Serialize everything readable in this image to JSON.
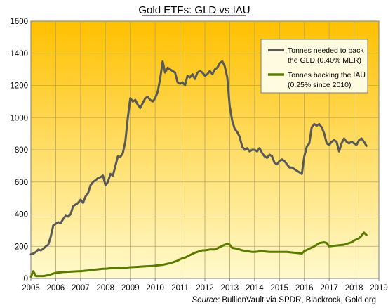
{
  "chart_data": {
    "type": "line",
    "title": "Gold ETFs: GLD vs IAU",
    "xlabel": "",
    "ylabel": "",
    "xlim": [
      2005,
      2019
    ],
    "ylim": [
      0,
      1600
    ],
    "y_ticks": [
      "0",
      "200",
      "400",
      "600",
      "800",
      "1000",
      "1200",
      "1400",
      "1600"
    ],
    "x_ticks": [
      "2005",
      "2006",
      "2007",
      "2008",
      "2009",
      "2010",
      "2011",
      "2012",
      "2013",
      "2014",
      "2015",
      "2016",
      "2017",
      "2018",
      "2019"
    ],
    "grid": true,
    "legend_position": "top-right",
    "series": [
      {
        "name_lines": [
          "Tonnes needed to back",
          "the GLD (0.40% MER)"
        ],
        "color": "#595959",
        "points": [
          [
            2005.0,
            150
          ],
          [
            2005.1,
            155
          ],
          [
            2005.2,
            165
          ],
          [
            2005.3,
            180
          ],
          [
            2005.4,
            175
          ],
          [
            2005.5,
            185
          ],
          [
            2005.6,
            200
          ],
          [
            2005.7,
            210
          ],
          [
            2005.8,
            260
          ],
          [
            2005.9,
            330
          ],
          [
            2006.0,
            340
          ],
          [
            2006.1,
            350
          ],
          [
            2006.2,
            345
          ],
          [
            2006.3,
            370
          ],
          [
            2006.4,
            390
          ],
          [
            2006.5,
            385
          ],
          [
            2006.6,
            400
          ],
          [
            2006.7,
            450
          ],
          [
            2006.8,
            460
          ],
          [
            2006.9,
            470
          ],
          [
            2007.0,
            490
          ],
          [
            2007.1,
            470
          ],
          [
            2007.2,
            510
          ],
          [
            2007.3,
            530
          ],
          [
            2007.4,
            580
          ],
          [
            2007.5,
            600
          ],
          [
            2007.6,
            610
          ],
          [
            2007.7,
            625
          ],
          [
            2007.8,
            630
          ],
          [
            2007.9,
            640
          ],
          [
            2008.0,
            580
          ],
          [
            2008.1,
            600
          ],
          [
            2008.2,
            650
          ],
          [
            2008.3,
            640
          ],
          [
            2008.4,
            700
          ],
          [
            2008.5,
            760
          ],
          [
            2008.6,
            755
          ],
          [
            2008.7,
            780
          ],
          [
            2008.8,
            850
          ],
          [
            2008.9,
            1000
          ],
          [
            2009.0,
            1120
          ],
          [
            2009.1,
            1100
          ],
          [
            2009.2,
            1110
          ],
          [
            2009.3,
            1080
          ],
          [
            2009.4,
            1060
          ],
          [
            2009.5,
            1090
          ],
          [
            2009.6,
            1120
          ],
          [
            2009.7,
            1130
          ],
          [
            2009.8,
            1110
          ],
          [
            2009.9,
            1100
          ],
          [
            2010.0,
            1120
          ],
          [
            2010.1,
            1160
          ],
          [
            2010.2,
            1240
          ],
          [
            2010.3,
            1350
          ],
          [
            2010.4,
            1280
          ],
          [
            2010.5,
            1310
          ],
          [
            2010.6,
            1300
          ],
          [
            2010.7,
            1290
          ],
          [
            2010.8,
            1280
          ],
          [
            2010.9,
            1220
          ],
          [
            2011.0,
            1210
          ],
          [
            2011.1,
            1220
          ],
          [
            2011.2,
            1200
          ],
          [
            2011.3,
            1260
          ],
          [
            2011.4,
            1250
          ],
          [
            2011.5,
            1270
          ],
          [
            2011.6,
            1240
          ],
          [
            2011.7,
            1280
          ],
          [
            2011.8,
            1290
          ],
          [
            2011.9,
            1280
          ],
          [
            2012.0,
            1260
          ],
          [
            2012.1,
            1270
          ],
          [
            2012.2,
            1290
          ],
          [
            2012.3,
            1270
          ],
          [
            2012.4,
            1300
          ],
          [
            2012.5,
            1310
          ],
          [
            2012.6,
            1340
          ],
          [
            2012.7,
            1350
          ],
          [
            2012.8,
            1320
          ],
          [
            2012.9,
            1250
          ],
          [
            2013.0,
            1070
          ],
          [
            2013.1,
            980
          ],
          [
            2013.2,
            930
          ],
          [
            2013.3,
            910
          ],
          [
            2013.4,
            880
          ],
          [
            2013.5,
            820
          ],
          [
            2013.6,
            800
          ],
          [
            2013.7,
            810
          ],
          [
            2013.8,
            790
          ],
          [
            2013.9,
            800
          ],
          [
            2014.0,
            800
          ],
          [
            2014.1,
            790
          ],
          [
            2014.2,
            810
          ],
          [
            2014.3,
            780
          ],
          [
            2014.4,
            760
          ],
          [
            2014.5,
            750
          ],
          [
            2014.6,
            770
          ],
          [
            2014.7,
            760
          ],
          [
            2014.8,
            720
          ],
          [
            2014.9,
            710
          ],
          [
            2015.0,
            730
          ],
          [
            2015.1,
            740
          ],
          [
            2015.2,
            730
          ],
          [
            2015.3,
            710
          ],
          [
            2015.4,
            690
          ],
          [
            2015.5,
            690
          ],
          [
            2015.6,
            680
          ],
          [
            2015.7,
            670
          ],
          [
            2015.8,
            660
          ],
          [
            2015.9,
            650
          ],
          [
            2016.0,
            760
          ],
          [
            2016.1,
            820
          ],
          [
            2016.2,
            840
          ],
          [
            2016.3,
            940
          ],
          [
            2016.4,
            960
          ],
          [
            2016.5,
            950
          ],
          [
            2016.6,
            960
          ],
          [
            2016.7,
            940
          ],
          [
            2016.8,
            900
          ],
          [
            2016.9,
            840
          ],
          [
            2017.0,
            830
          ],
          [
            2017.1,
            850
          ],
          [
            2017.2,
            860
          ],
          [
            2017.3,
            850
          ],
          [
            2017.4,
            790
          ],
          [
            2017.5,
            840
          ],
          [
            2017.6,
            870
          ],
          [
            2017.7,
            850
          ],
          [
            2017.8,
            840
          ],
          [
            2017.9,
            850
          ],
          [
            2018.0,
            840
          ],
          [
            2018.1,
            830
          ],
          [
            2018.2,
            860
          ],
          [
            2018.3,
            870
          ],
          [
            2018.4,
            850
          ],
          [
            2018.5,
            825
          ]
        ]
      },
      {
        "name_lines": [
          "Tonnes backing the IAU",
          "(0.25% since 2010)"
        ],
        "color": "#5a7a00",
        "points": [
          [
            2005.0,
            10
          ],
          [
            2005.1,
            45
          ],
          [
            2005.2,
            15
          ],
          [
            2005.3,
            15
          ],
          [
            2005.5,
            15
          ],
          [
            2005.7,
            20
          ],
          [
            2005.9,
            30
          ],
          [
            2006.0,
            35
          ],
          [
            2006.3,
            40
          ],
          [
            2006.6,
            42
          ],
          [
            2006.9,
            45
          ],
          [
            2007.0,
            45
          ],
          [
            2007.3,
            50
          ],
          [
            2007.6,
            55
          ],
          [
            2007.9,
            60
          ],
          [
            2008.0,
            60
          ],
          [
            2008.3,
            65
          ],
          [
            2008.6,
            65
          ],
          [
            2008.9,
            68
          ],
          [
            2009.0,
            70
          ],
          [
            2009.3,
            72
          ],
          [
            2009.6,
            75
          ],
          [
            2009.9,
            78
          ],
          [
            2010.0,
            80
          ],
          [
            2010.3,
            85
          ],
          [
            2010.6,
            95
          ],
          [
            2010.9,
            110
          ],
          [
            2011.0,
            120
          ],
          [
            2011.2,
            130
          ],
          [
            2011.4,
            145
          ],
          [
            2011.6,
            160
          ],
          [
            2011.8,
            170
          ],
          [
            2011.9,
            175
          ],
          [
            2012.0,
            175
          ],
          [
            2012.2,
            180
          ],
          [
            2012.4,
            180
          ],
          [
            2012.6,
            195
          ],
          [
            2012.8,
            210
          ],
          [
            2012.9,
            215
          ],
          [
            2013.0,
            210
          ],
          [
            2013.1,
            190
          ],
          [
            2013.3,
            185
          ],
          [
            2013.5,
            175
          ],
          [
            2013.7,
            170
          ],
          [
            2013.9,
            165
          ],
          [
            2014.0,
            165
          ],
          [
            2014.3,
            170
          ],
          [
            2014.6,
            165
          ],
          [
            2014.9,
            165
          ],
          [
            2015.0,
            165
          ],
          [
            2015.3,
            165
          ],
          [
            2015.6,
            160
          ],
          [
            2015.9,
            155
          ],
          [
            2016.0,
            170
          ],
          [
            2016.2,
            185
          ],
          [
            2016.4,
            200
          ],
          [
            2016.6,
            220
          ],
          [
            2016.8,
            225
          ],
          [
            2016.9,
            220
          ],
          [
            2017.0,
            200
          ],
          [
            2017.3,
            205
          ],
          [
            2017.6,
            210
          ],
          [
            2017.9,
            225
          ],
          [
            2018.0,
            235
          ],
          [
            2018.2,
            250
          ],
          [
            2018.3,
            265
          ],
          [
            2018.4,
            285
          ],
          [
            2018.5,
            270
          ]
        ]
      }
    ],
    "source_italic": "Source:",
    "source_rest": " BullionVault via SPDR, Blackrock, Gold.org"
  }
}
